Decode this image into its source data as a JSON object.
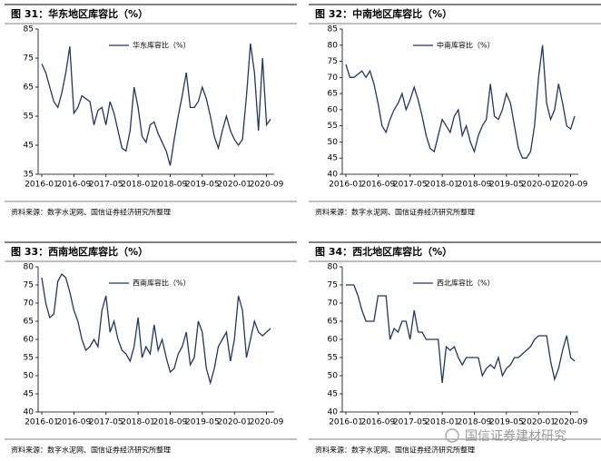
{
  "chart_data": [
    {
      "type": "line",
      "title": "图 31：华东地区库容比（%）",
      "note": "资料来源：数字水泥网、国信证券经济研究所整理",
      "x": [
        "2016-01",
        "2016-02",
        "2016-03",
        "2016-04",
        "2016-05",
        "2016-06",
        "2016-07",
        "2016-08",
        "2016-09",
        "2016-10",
        "2016-11",
        "2016-12",
        "2017-01",
        "2017-02",
        "2017-03",
        "2017-04",
        "2017-05",
        "2017-06",
        "2017-07",
        "2017-08",
        "2017-09",
        "2017-10",
        "2017-11",
        "2017-12",
        "2018-01",
        "2018-02",
        "2018-03",
        "2018-04",
        "2018-05",
        "2018-06",
        "2018-07",
        "2018-08",
        "2018-09",
        "2018-10",
        "2018-11",
        "2018-12",
        "2019-01",
        "2019-02",
        "2019-03",
        "2019-04",
        "2019-05",
        "2019-06",
        "2019-07",
        "2019-08",
        "2019-09",
        "2019-10",
        "2019-11",
        "2019-12",
        "2020-01",
        "2020-02",
        "2020-03",
        "2020-04",
        "2020-05",
        "2020-06",
        "2020-07",
        "2020-08",
        "2020-09",
        "2020-10"
      ],
      "series": [
        {
          "name": "华东库容比（%）",
          "color": "#1f3864",
          "values": [
            73,
            70,
            65,
            60,
            58,
            63,
            70,
            79,
            56,
            58,
            62,
            61,
            60,
            52,
            57,
            58,
            52,
            60,
            56,
            50,
            44,
            43,
            50,
            65,
            58,
            48,
            46,
            52,
            53,
            49,
            46,
            43,
            38,
            47,
            55,
            62,
            70,
            58,
            58,
            60,
            65,
            61,
            55,
            48,
            44,
            50,
            55,
            50,
            47,
            45,
            47,
            62,
            80,
            70,
            50,
            75,
            52,
            54
          ]
        }
      ],
      "ylim": [
        35,
        85
      ],
      "yticks": [
        35,
        45,
        55,
        65,
        75,
        85
      ],
      "xticks": [
        "2016-01",
        "2016-09",
        "2017-05",
        "2018-01",
        "2018-09",
        "2019-05",
        "2020-01",
        "2020-09"
      ]
    },
    {
      "type": "line",
      "title": "图 32：中南地区库容比（%）",
      "note": "资料来源：数字水泥网、国信证券经济研究所整理",
      "x": [
        "2016-01",
        "2016-02",
        "2016-03",
        "2016-04",
        "2016-05",
        "2016-06",
        "2016-07",
        "2016-08",
        "2016-09",
        "2016-10",
        "2016-11",
        "2016-12",
        "2017-01",
        "2017-02",
        "2017-03",
        "2017-04",
        "2017-05",
        "2017-06",
        "2017-07",
        "2017-08",
        "2017-09",
        "2017-10",
        "2017-11",
        "2017-12",
        "2018-01",
        "2018-02",
        "2018-03",
        "2018-04",
        "2018-05",
        "2018-06",
        "2018-07",
        "2018-08",
        "2018-09",
        "2018-10",
        "2018-11",
        "2018-12",
        "2019-01",
        "2019-02",
        "2019-03",
        "2019-04",
        "2019-05",
        "2019-06",
        "2019-07",
        "2019-08",
        "2019-09",
        "2019-10",
        "2019-11",
        "2019-12",
        "2020-01",
        "2020-02",
        "2020-03",
        "2020-04",
        "2020-05",
        "2020-06",
        "2020-07",
        "2020-08",
        "2020-09",
        "2020-10"
      ],
      "series": [
        {
          "name": "中南库容比（%）",
          "color": "#1f3864",
          "values": [
            74,
            70,
            70,
            71,
            72,
            70,
            72,
            68,
            62,
            55,
            53,
            57,
            60,
            62,
            65,
            60,
            63,
            67,
            63,
            58,
            52,
            48,
            47,
            52,
            57,
            55,
            53,
            58,
            60,
            52,
            55,
            50,
            47,
            52,
            55,
            57,
            68,
            58,
            57,
            60,
            65,
            62,
            55,
            48,
            45,
            45,
            47,
            55,
            70,
            80,
            62,
            57,
            60,
            68,
            62,
            55,
            54,
            58
          ]
        }
      ],
      "ylim": [
        40,
        85
      ],
      "yticks": [
        40,
        45,
        50,
        55,
        60,
        65,
        70,
        75,
        80,
        85
      ],
      "xticks": [
        "2016-01",
        "2016-09",
        "2017-05",
        "2018-01",
        "2018-09",
        "2019-05",
        "2020-01",
        "2020-09"
      ]
    },
    {
      "type": "line",
      "title": "图 33：西南地区库容比（%）",
      "note": "资料来源：数字水泥网、国信证券经济研究所整理",
      "x": [
        "2016-01",
        "2016-02",
        "2016-03",
        "2016-04",
        "2016-05",
        "2016-06",
        "2016-07",
        "2016-08",
        "2016-09",
        "2016-10",
        "2016-11",
        "2016-12",
        "2017-01",
        "2017-02",
        "2017-03",
        "2017-04",
        "2017-05",
        "2017-06",
        "2017-07",
        "2017-08",
        "2017-09",
        "2017-10",
        "2017-11",
        "2017-12",
        "2018-01",
        "2018-02",
        "2018-03",
        "2018-04",
        "2018-05",
        "2018-06",
        "2018-07",
        "2018-08",
        "2018-09",
        "2018-10",
        "2018-11",
        "2018-12",
        "2019-01",
        "2019-02",
        "2019-03",
        "2019-04",
        "2019-05",
        "2019-06",
        "2019-07",
        "2019-08",
        "2019-09",
        "2019-10",
        "2019-11",
        "2019-12",
        "2020-01",
        "2020-02",
        "2020-03",
        "2020-04",
        "2020-05",
        "2020-06",
        "2020-07",
        "2020-08",
        "2020-09",
        "2020-10"
      ],
      "series": [
        {
          "name": "西南库容比（%）",
          "color": "#1f3864",
          "values": [
            77,
            70,
            66,
            67,
            76,
            78,
            77,
            73,
            68,
            65,
            60,
            57,
            58,
            60,
            58,
            68,
            72,
            62,
            65,
            60,
            57,
            56,
            54,
            58,
            66,
            55,
            58,
            56,
            64,
            57,
            60,
            55,
            51,
            52,
            56,
            58,
            62,
            53,
            55,
            65,
            62,
            52,
            48,
            52,
            58,
            60,
            62,
            54,
            60,
            72,
            68,
            55,
            60,
            65,
            62,
            61,
            62,
            63
          ]
        }
      ],
      "ylim": [
        40,
        80
      ],
      "yticks": [
        40,
        45,
        50,
        55,
        60,
        65,
        70,
        75,
        80
      ],
      "xticks": [
        "2016-01",
        "2016-09",
        "2017-05",
        "2018-01",
        "2018-09",
        "2019-05",
        "2020-01",
        "2020-09"
      ]
    },
    {
      "type": "line",
      "title": "图 34：西北地区库容比（%）",
      "note": "资料来源：数字水泥网、国信证券经济研究所整理",
      "x": [
        "2016-01",
        "2016-02",
        "2016-03",
        "2016-04",
        "2016-05",
        "2016-06",
        "2016-07",
        "2016-08",
        "2016-09",
        "2016-10",
        "2016-11",
        "2016-12",
        "2017-01",
        "2017-02",
        "2017-03",
        "2017-04",
        "2017-05",
        "2017-06",
        "2017-07",
        "2017-08",
        "2017-09",
        "2017-10",
        "2017-11",
        "2017-12",
        "2018-01",
        "2018-02",
        "2018-03",
        "2018-04",
        "2018-05",
        "2018-06",
        "2018-07",
        "2018-08",
        "2018-09",
        "2018-10",
        "2018-11",
        "2018-12",
        "2019-01",
        "2019-02",
        "2019-03",
        "2019-04",
        "2019-05",
        "2019-06",
        "2019-07",
        "2019-08",
        "2019-09",
        "2019-10",
        "2019-11",
        "2019-12",
        "2020-01",
        "2020-02",
        "2020-03",
        "2020-04",
        "2020-05",
        "2020-06",
        "2020-07",
        "2020-08",
        "2020-09",
        "2020-10"
      ],
      "series": [
        {
          "name": "西北库容比（%）",
          "color": "#1f3864",
          "values": [
            75,
            75,
            75,
            72,
            68,
            65,
            65,
            65,
            72,
            72,
            72,
            60,
            63,
            62,
            65,
            65,
            60,
            68,
            62,
            62,
            60,
            60,
            60,
            60,
            48,
            58,
            57,
            58,
            55,
            53,
            55,
            55,
            55,
            55,
            50,
            52,
            53,
            52,
            55,
            50,
            52,
            53,
            55,
            55,
            56,
            57,
            58,
            60,
            61,
            61,
            61,
            54,
            49,
            52,
            57,
            61,
            55,
            54
          ]
        }
      ],
      "ylim": [
        40,
        80
      ],
      "yticks": [
        40,
        45,
        50,
        55,
        60,
        65,
        70,
        75,
        80
      ],
      "xticks": [
        "2016-01",
        "2016-09",
        "2017-05",
        "2018-01",
        "2018-09",
        "2019-05",
        "2020-01",
        "2020-09"
      ]
    }
  ],
  "watermark": "国信证券建材研究"
}
